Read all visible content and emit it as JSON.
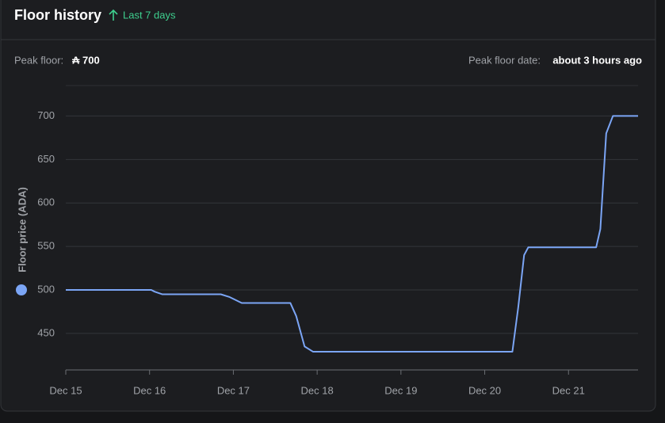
{
  "card": {
    "title": "Floor history",
    "range": "Last 7 days",
    "peak_floor_label": "Peak floor:",
    "peak_floor_value": "₳ 700",
    "peak_date_label": "Peak floor date:",
    "peak_date_value": "about 3 hours ago"
  },
  "chart_data": {
    "type": "line",
    "y_label": "Floor price (ADA)",
    "x": [
      0,
      1.02,
      1.06,
      1.15,
      1.85,
      1.95,
      2.1,
      2.68,
      2.75,
      2.85,
      2.95,
      5.33,
      5.4,
      5.47,
      5.52,
      6.33,
      6.38,
      6.45,
      6.53,
      6.83
    ],
    "series": [
      {
        "name": "Floor price (ADA)",
        "color": "#7ba5f5",
        "values": [
          500,
          500,
          498,
          495,
          495,
          492,
          485,
          485,
          470,
          435,
          429,
          429,
          480,
          540,
          549,
          549,
          570,
          680,
          700,
          700
        ]
      }
    ],
    "xlim": [
      0,
      6.83
    ],
    "xticks": [
      {
        "value": 0,
        "label": "Dec 15"
      },
      {
        "value": 1,
        "label": "Dec 16"
      },
      {
        "value": 2,
        "label": "Dec 17"
      },
      {
        "value": 3,
        "label": "Dec 18"
      },
      {
        "value": 4,
        "label": "Dec 19"
      },
      {
        "value": 5,
        "label": "Dec 20"
      },
      {
        "value": 6,
        "label": "Dec 21"
      }
    ],
    "ylim": [
      408,
      735
    ],
    "yticks": [
      450,
      500,
      550,
      600,
      650,
      700
    ],
    "grid": true
  }
}
